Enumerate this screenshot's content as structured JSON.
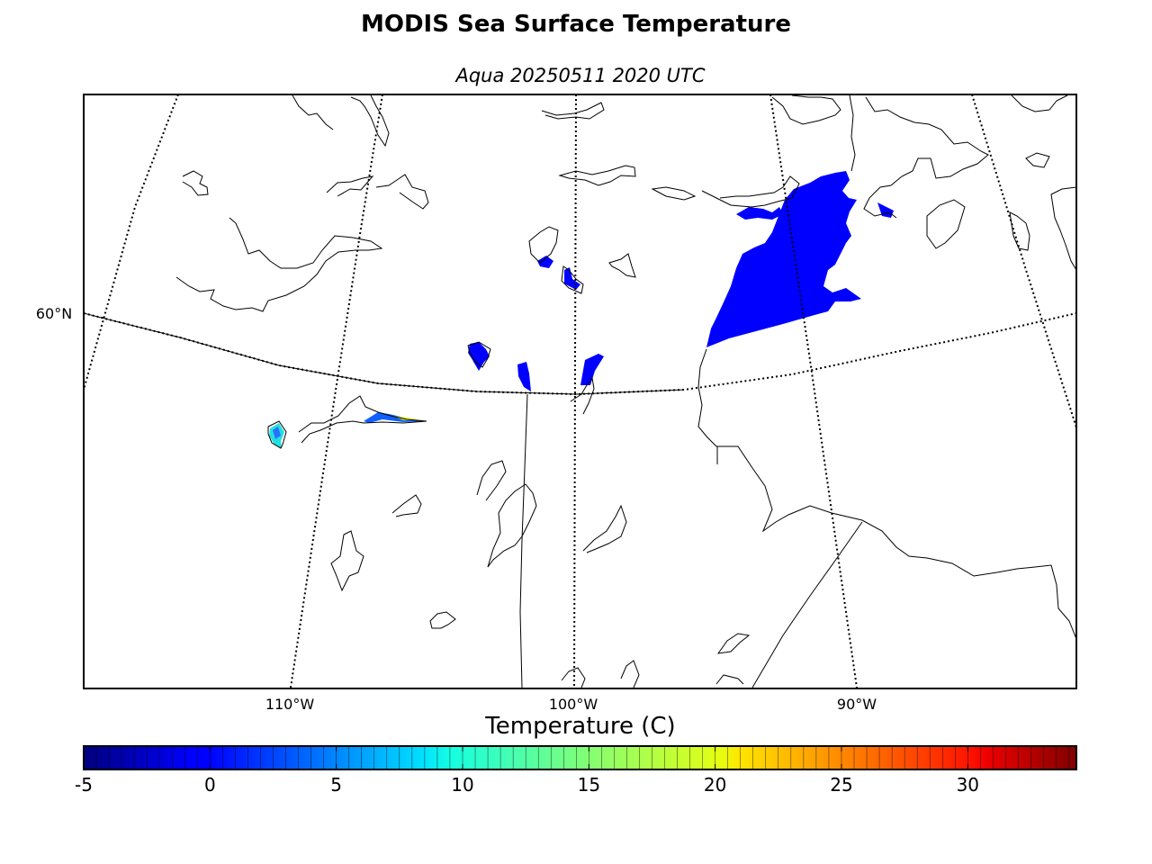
{
  "title": "MODIS Sea Surface Temperature",
  "subtitle": "Aqua 20250511 2020 UTC",
  "map": {
    "lat_labels": [
      "60°N"
    ],
    "lon_labels": [
      "110°W",
      "100°W",
      "90°W"
    ]
  },
  "colorbar": {
    "title": "Temperature (C)",
    "min": -5,
    "max": 34.3,
    "tick_labels": [
      "-5",
      "0",
      "5",
      "10",
      "15",
      "20",
      "25",
      "30"
    ],
    "colormap": "jet"
  },
  "colors": {
    "sst_cold": "#0000ff",
    "sst_cyan": "#22e0e0",
    "sst_green": "#6ef05a",
    "sst_yellow": "#e8f020"
  }
}
